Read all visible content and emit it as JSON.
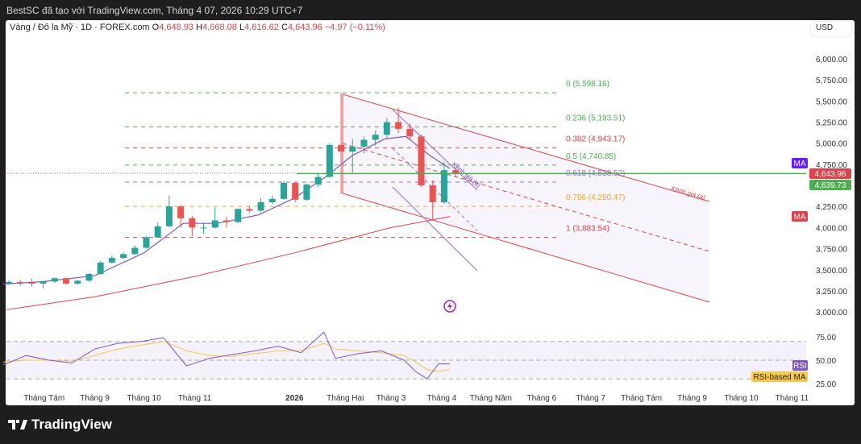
{
  "header": {
    "caption": "BestSC đã tạo với TradingView.com, Tháng 4 07, 2026 10:29 UTC+7"
  },
  "legend": {
    "symbol": "Vàng / Đô la Mỹ · 1D · FOREX.com",
    "o_label": "O",
    "o": "4,648.93",
    "h_label": "H",
    "h": "4,668.08",
    "l_label": "L",
    "l": "4,616.62",
    "c_label": "C",
    "c": "4,643.96",
    "change": "−4.97 (−0.11%)"
  },
  "currency": "USD",
  "logo": "TradingView",
  "colors": {
    "up": "#26a69a",
    "down": "#ef5350",
    "ma_short": "#7e57c2",
    "ma_long": "#e0424b",
    "rsi": "#7e57c2",
    "rsi_ma": "#f7c948",
    "fib_green": "#4caf50",
    "fib_red": "#e0424b",
    "fib_purple": "#9c6bd3",
    "fib_orange": "#f5a623"
  },
  "chart_data": {
    "type": "candlestick",
    "symbol": "XAUUSD",
    "interval": "1D",
    "price_axis": {
      "ticks": [
        "6,000.00",
        "5,750.00",
        "5,500.00",
        "5,250.00",
        "5,000.00",
        "4,750.00",
        "4,250.00",
        "4,000.00",
        "3,750.00",
        "3,500.00",
        "3,250.00",
        "3,000.00"
      ],
      "tick_values": [
        6000,
        5750,
        5500,
        5250,
        5000,
        4750,
        4250,
        4000,
        3750,
        3500,
        3250,
        3000
      ]
    },
    "time_axis": {
      "ticks": [
        "Tháng Tám",
        "Tháng 9",
        "Tháng 10",
        "Tháng 11",
        "2026",
        "Tháng Hai",
        "Tháng 3",
        "Tháng 4",
        "Tháng Năm",
        "Tháng 6",
        "Tháng 7",
        "Tháng Tám",
        "Tháng 9",
        "Tháng 10",
        "Tháng 11"
      ],
      "tick_dates": [
        "2025-08-01",
        "2025-09-01",
        "2025-10-01",
        "2025-11-01",
        "2026-01-01",
        "2026-02-01",
        "2026-03-01",
        "2026-04-01",
        "2026-05-01",
        "2026-06-01",
        "2026-07-01",
        "2026-08-01",
        "2026-09-01",
        "2026-10-01",
        "2026-11-01"
      ]
    },
    "candles": [
      [
        "2025-07-07",
        3340,
        3375,
        3320,
        3355
      ],
      [
        "2025-07-14",
        3355,
        3380,
        3310,
        3350
      ],
      [
        "2025-07-21",
        3350,
        3395,
        3300,
        3335
      ],
      [
        "2025-07-28",
        3335,
        3370,
        3280,
        3360
      ],
      [
        "2025-08-04",
        3360,
        3410,
        3345,
        3400
      ],
      [
        "2025-08-11",
        3400,
        3405,
        3320,
        3335
      ],
      [
        "2025-08-18",
        3335,
        3380,
        3320,
        3370
      ],
      [
        "2025-08-25",
        3370,
        3460,
        3360,
        3450
      ],
      [
        "2025-09-01",
        3450,
        3600,
        3440,
        3585
      ],
      [
        "2025-09-08",
        3585,
        3670,
        3575,
        3640
      ],
      [
        "2025-09-15",
        3640,
        3705,
        3625,
        3685
      ],
      [
        "2025-09-22",
        3685,
        3790,
        3680,
        3760
      ],
      [
        "2025-09-29",
        3760,
        3900,
        3750,
        3885
      ],
      [
        "2025-10-06",
        3885,
        4060,
        3880,
        4015
      ],
      [
        "2025-10-13",
        4015,
        4380,
        4000,
        4250
      ],
      [
        "2025-10-20",
        4250,
        4270,
        4000,
        4110
      ],
      [
        "2025-10-27",
        4110,
        4140,
        3900,
        4000
      ],
      [
        "2025-11-03",
        4000,
        4060,
        3930,
        4000
      ],
      [
        "2025-11-10",
        4000,
        4240,
        3990,
        4085
      ],
      [
        "2025-11-17",
        4085,
        4130,
        4000,
        4065
      ],
      [
        "2025-11-24",
        4065,
        4230,
        4050,
        4220
      ],
      [
        "2025-12-01",
        4220,
        4260,
        4170,
        4200
      ],
      [
        "2025-12-08",
        4200,
        4350,
        4180,
        4300
      ],
      [
        "2025-12-15",
        4300,
        4380,
        4280,
        4340
      ],
      [
        "2025-12-22",
        4340,
        4550,
        4330,
        4530
      ],
      [
        "2025-12-29",
        4530,
        4540,
        4300,
        4330
      ],
      [
        "2026-01-05",
        4330,
        4520,
        4320,
        4510
      ],
      [
        "2026-01-12",
        4510,
        4650,
        4480,
        4600
      ],
      [
        "2026-01-19",
        4600,
        5000,
        4590,
        4980
      ],
      [
        "2026-01-26",
        4980,
        5598,
        4400,
        4900
      ],
      [
        "2026-02-02",
        4900,
        5050,
        4650,
        4960
      ],
      [
        "2026-02-09",
        4960,
        5080,
        4880,
        5040
      ],
      [
        "2026-02-16",
        5040,
        5150,
        4970,
        5100
      ],
      [
        "2026-02-23",
        5100,
        5300,
        5060,
        5250
      ],
      [
        "2026-03-02",
        5250,
        5420,
        5120,
        5170
      ],
      [
        "2026-03-09",
        5170,
        5230,
        5040,
        5080
      ],
      [
        "2026-03-16",
        5080,
        5100,
        4480,
        4500
      ],
      [
        "2026-03-23",
        4500,
        4560,
        4100,
        4300
      ],
      [
        "2026-03-30",
        4300,
        4780,
        4280,
        4680
      ],
      [
        "2026-04-06",
        4680,
        4700,
        4600,
        4644
      ]
    ],
    "ma_short": {
      "dates": [
        "2025-07-07",
        "2025-08-01",
        "2025-09-01",
        "2025-10-01",
        "2025-10-25",
        "2025-11-15",
        "2025-12-10",
        "2026-01-01",
        "2026-01-20",
        "2026-02-05",
        "2026-02-25",
        "2026-03-10",
        "2026-03-25",
        "2026-04-06"
      ],
      "values": [
        3330,
        3360,
        3430,
        3700,
        4050,
        4050,
        4150,
        4350,
        4600,
        4850,
        5050,
        5080,
        4850,
        4700
      ]
    },
    "ma_long": {
      "dates": [
        "2025-07-07",
        "2025-09-01",
        "2025-11-01",
        "2026-01-01",
        "2026-03-01",
        "2026-04-06"
      ],
      "values": [
        3020,
        3180,
        3420,
        3700,
        4000,
        4130
      ]
    },
    "last_price": "4,643.96",
    "ma_price": "4,639.73",
    "ma_tags": [
      "MA",
      "MA"
    ],
    "fib_levels": [
      {
        "label": "0 (5,598.16)",
        "value": 5598.16,
        "color": "#4caf50"
      },
      {
        "label": "0.236 (5,193.51)",
        "value": 5193.51,
        "color": "#4caf50"
      },
      {
        "label": "0.382 (4,943.17)",
        "value": 4943.17,
        "color": "#e0424b"
      },
      {
        "label": "0.5 (4,740.85)",
        "value": 4740.85,
        "color": "#4caf50"
      },
      {
        "label": "0.618 (4,538.52)",
        "value": 4538.52,
        "color": "#9c6bd3"
      },
      {
        "label": "0.786 (4,250.47)",
        "value": 4250.47,
        "color": "#f5a623"
      },
      {
        "label": "1 (3,883.54)",
        "value": 3883.54,
        "color": "#e0424b"
      }
    ],
    "channels": [
      {
        "label": "Kênh giá (a)"
      },
      {
        "label": "Kênh giá (b)"
      }
    ],
    "rsi": {
      "axis": {
        "ticks": [
          "75.00",
          "50.00",
          "25.00"
        ],
        "tick_values": [
          75,
          50,
          25
        ]
      },
      "bands": [
        70,
        50,
        30
      ],
      "label": "RSI",
      "ma_label": "RSI-based MA",
      "dates": [
        "2025-07-07",
        "2025-07-21",
        "2025-08-04",
        "2025-08-18",
        "2025-09-01",
        "2025-09-15",
        "2025-09-29",
        "2025-10-13",
        "2025-10-27",
        "2025-11-10",
        "2025-11-24",
        "2025-12-08",
        "2025-12-22",
        "2026-01-05",
        "2026-01-19",
        "2026-01-26",
        "2026-02-09",
        "2026-02-23",
        "2026-03-09",
        "2026-03-16",
        "2026-03-23",
        "2026-03-30",
        "2026-04-06"
      ],
      "values": [
        45,
        55,
        50,
        47,
        62,
        68,
        70,
        74,
        44,
        52,
        56,
        60,
        65,
        58,
        80,
        52,
        57,
        60,
        50,
        38,
        30,
        46,
        46
      ],
      "ma_values": [
        48,
        50,
        50,
        49,
        55,
        62,
        66,
        70,
        60,
        55,
        54,
        57,
        60,
        60,
        68,
        62,
        60,
        58,
        55,
        48,
        40,
        38,
        40
      ]
    }
  }
}
